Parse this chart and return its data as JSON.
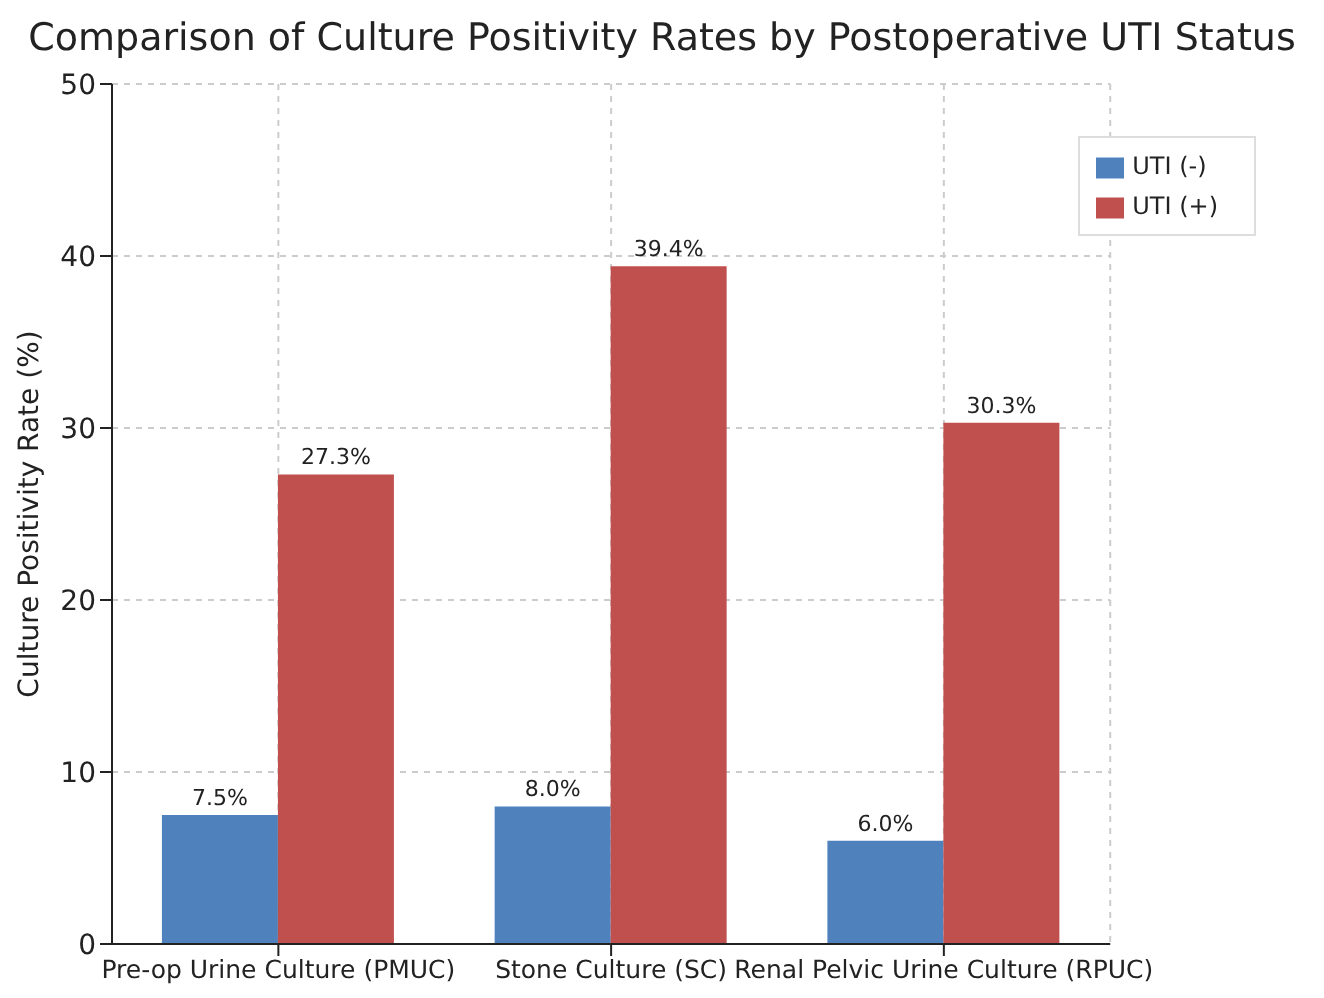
{
  "chart_data": {
    "type": "bar",
    "title": "Comparison of Culture Positivity Rates by Postoperative UTI Status",
    "ylabel": "Culture Positivity Rate (%)",
    "categories": [
      "Pre-op Urine Culture (PMUC)",
      "Stone Culture (SC)",
      "Renal Pelvic Urine Culture (RPUC)"
    ],
    "series": [
      {
        "name": "UTI (-)",
        "color": "#4f81bd",
        "values": [
          7.5,
          8.0,
          6.0
        ],
        "value_labels": [
          "7.5%",
          "8.0%",
          "6.0%"
        ]
      },
      {
        "name": "UTI (+)",
        "color": "#c0504d",
        "values": [
          27.3,
          39.4,
          30.3
        ],
        "value_labels": [
          "27.3%",
          "39.4%",
          "30.3%"
        ]
      }
    ],
    "ylim": [
      0,
      50
    ],
    "yticks": [
      0,
      10,
      20,
      30,
      40,
      50
    ],
    "grid": true,
    "legend": "top right"
  }
}
